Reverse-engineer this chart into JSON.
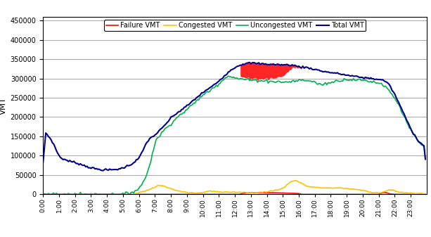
{
  "ylabel": "VMT",
  "ylim": [
    0,
    460000
  ],
  "yticks": [
    0,
    50000,
    100000,
    150000,
    200000,
    250000,
    300000,
    350000,
    400000,
    450000
  ],
  "legend_labels": [
    "Failure VMT",
    "Congested VMT",
    "Uncongested VMT",
    "Total VMT"
  ],
  "line_colors": {
    "failure": "#ff0000",
    "congested": "#ffc000",
    "uncongested": "#00b050",
    "total": "#00008b"
  },
  "background_color": "#ffffff",
  "grid_color": "#999999"
}
